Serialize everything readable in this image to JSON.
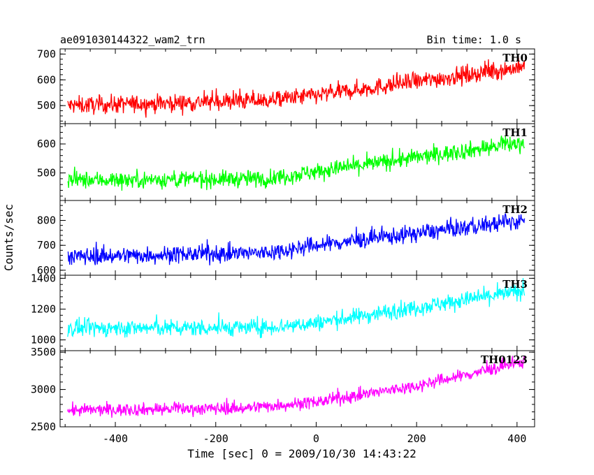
{
  "header": {
    "file_title": "ae091030144322_wam2_trn",
    "bin_time": "Bin time: 1.0 s"
  },
  "axes": {
    "xlabel": "Time [sec] 0 = 2009/10/30 14:43:22",
    "ylabel": "Counts/sec"
  },
  "chart_data": {
    "type": "line",
    "title": "ae091030144322_wam2_trn",
    "xlabel": "Time [sec] 0 = 2009/10/30 14:43:22",
    "ylabel": "Counts/sec",
    "xlim": [
      -510,
      435
    ],
    "x_ticks": [
      -400,
      -200,
      0,
      200,
      400
    ],
    "x_range_data": [
      -495,
      415
    ],
    "grid": false,
    "panels": [
      {
        "name": "TH0",
        "color": "#ff0000",
        "ylim": [
          430,
          720
        ],
        "y_ticks": [
          500,
          600,
          700
        ],
        "trend": [
          [
            -495,
            500
          ],
          [
            -100,
            520
          ],
          [
            0,
            540
          ],
          [
            415,
            650
          ]
        ],
        "noise_amp": 45
      },
      {
        "name": "TH1",
        "color": "#00ff00",
        "ylim": [
          405,
          670
        ],
        "y_ticks": [
          500,
          600
        ],
        "trend": [
          [
            -495,
            475
          ],
          [
            -100,
            480
          ],
          [
            0,
            505
          ],
          [
            415,
            605
          ]
        ],
        "noise_amp": 38
      },
      {
        "name": "TH2",
        "color": "#0000ff",
        "ylim": [
          580,
          880
        ],
        "y_ticks": [
          600,
          700,
          800
        ],
        "trend": [
          [
            -495,
            655
          ],
          [
            -100,
            670
          ],
          [
            0,
            700
          ],
          [
            415,
            800
          ]
        ],
        "noise_amp": 45
      },
      {
        "name": "TH3",
        "color": "#00ffff",
        "ylim": [
          930,
          1420
        ],
        "y_ticks": [
          1000,
          1200,
          1400
        ],
        "trend": [
          [
            -495,
            1075
          ],
          [
            -100,
            1080
          ],
          [
            0,
            1110
          ],
          [
            415,
            1320
          ]
        ],
        "noise_amp": 70
      },
      {
        "name": "TH0123",
        "color": "#ff00ff",
        "ylim": [
          2500,
          3520
        ],
        "y_ticks": [
          2500,
          3000,
          3500
        ],
        "trend": [
          [
            -495,
            2720
          ],
          [
            -150,
            2750
          ],
          [
            0,
            2830
          ],
          [
            200,
            3050
          ],
          [
            415,
            3370
          ]
        ],
        "noise_amp": 110
      }
    ]
  }
}
